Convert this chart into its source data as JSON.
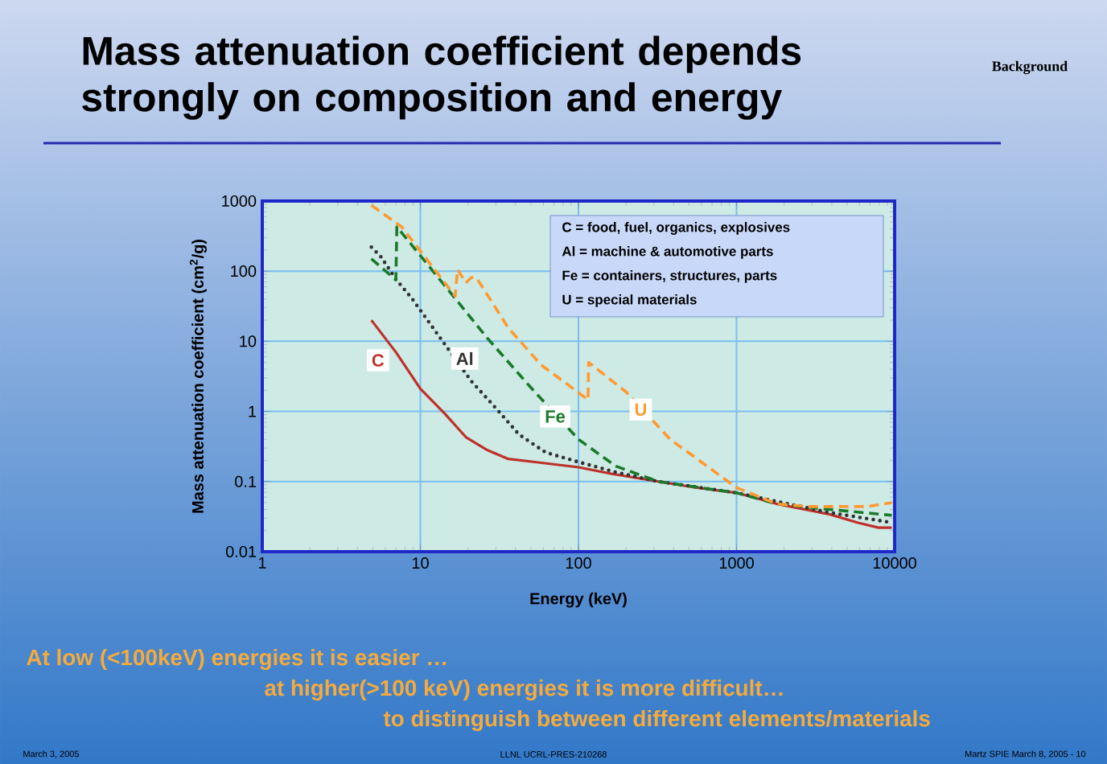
{
  "chart_data": {
    "type": "line",
    "title": "Mass attenuation coefficient depends strongly on composition and energy",
    "xlabel": "Energy (keV)",
    "ylabel": "Mass attenuation coefficient (cm$^{2}$/g)",
    "log": "xy",
    "grid": true,
    "marker": "none",
    "xlim": [
      1,
      10000
    ],
    "ylim": [
      0.01,
      1000
    ],
    "xticks": [
      1,
      10,
      100,
      1000,
      10000
    ],
    "yticks": [
      0.01,
      0.1,
      1,
      10,
      100,
      1000
    ],
    "series": [
      {
        "name": "C",
        "color": "#c0302a",
        "line_style": "solid",
        "x": [
          4.9,
          7,
          10,
          14.2,
          19.4,
          26.6,
          36,
          53,
          100,
          172,
          320,
          550,
          1000,
          1800,
          3900,
          5800,
          7900,
          9600
        ],
        "values": [
          20,
          7,
          2.1,
          0.94,
          0.43,
          0.28,
          0.21,
          0.19,
          0.16,
          0.126,
          0.1,
          0.082,
          0.069,
          0.048,
          0.034,
          0.026,
          0.022,
          0.022
        ]
      },
      {
        "name": "Al",
        "color": "#333333",
        "line_style": "dotted",
        "x": [
          4.9,
          5.6,
          7,
          8.9,
          14.2,
          21,
          31,
          42,
          62,
          100,
          172,
          320,
          1000,
          3900,
          9600
        ],
        "values": [
          220,
          163,
          77,
          40,
          9.2,
          2.7,
          1.03,
          0.47,
          0.26,
          0.19,
          0.136,
          0.1,
          0.069,
          0.036,
          0.026
        ]
      },
      {
        "name": "Fe",
        "color": "#1a7a2a",
        "line_style": "dashed",
        "x": [
          4.9,
          7,
          7.1,
          14.2,
          26.6,
          49,
          100,
          172,
          320,
          1000,
          1800,
          3900,
          9600
        ],
        "values": [
          150,
          75,
          430,
          63,
          11,
          2.3,
          0.4,
          0.166,
          0.1,
          0.069,
          0.048,
          0.04,
          0.033
        ]
      },
      {
        "name": "U",
        "color": "#ff9a30",
        "line_style": "dashed",
        "x": [
          4.9,
          7.6,
          16.6,
          17.2,
          19.4,
          21,
          22.7,
          36,
          58,
          80,
          115,
          116,
          200,
          380,
          1000,
          1800,
          2850,
          6700,
          9600
        ],
        "values": [
          870,
          430,
          44,
          106,
          68,
          81,
          80,
          15.5,
          4.6,
          2.7,
          1.46,
          5,
          1.9,
          0.4,
          0.082,
          0.048,
          0.044,
          0.044,
          0.05
        ]
      }
    ],
    "annotations": [
      "C = food, fuel, organics, explosives",
      "Al = machine & automotive parts",
      "Fe = containers, structures, parts",
      "U = special materials",
      "Background",
      "At low (<100keV) energies it is easier …",
      "at higher(>100 keV)  energies it is more difficult…",
      "to distinguish between different elements/materials",
      "March 3, 2005",
      "LLNL UCRL-PRES-210268",
      "Martz SPIE March 8, 2005 - 10"
    ]
  }
}
